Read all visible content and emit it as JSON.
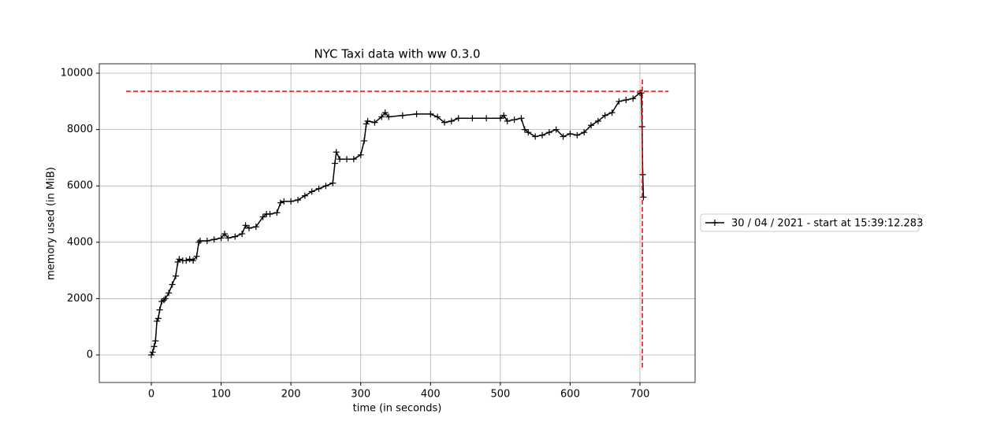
{
  "chart_data": {
    "type": "line",
    "title": "NYC Taxi data with ww 0.3.0",
    "xlabel": "time (in seconds)",
    "ylabel": "memory used (in MiB)",
    "x": [
      0,
      2,
      4,
      6,
      8,
      10,
      12,
      15,
      18,
      20,
      25,
      30,
      35,
      38,
      40,
      45,
      50,
      55,
      60,
      65,
      68,
      70,
      80,
      90,
      100,
      105,
      110,
      120,
      130,
      135,
      140,
      150,
      160,
      165,
      170,
      180,
      185,
      190,
      200,
      210,
      220,
      230,
      240,
      250,
      260,
      263,
      265,
      270,
      280,
      290,
      300,
      305,
      308,
      310,
      320,
      330,
      335,
      340,
      360,
      380,
      400,
      410,
      420,
      430,
      440,
      460,
      480,
      500,
      505,
      510,
      520,
      530,
      535,
      540,
      550,
      560,
      570,
      580,
      590,
      600,
      610,
      620,
      630,
      640,
      650,
      660,
      670,
      680,
      690,
      700,
      702,
      703,
      704,
      705
    ],
    "series": [
      {
        "name": "30 / 04 / 2021 - start at 15:39:12.283",
        "color": "#000000",
        "values": [
          0,
          100,
          300,
          500,
          1200,
          1300,
          1600,
          1900,
          1950,
          2000,
          2200,
          2500,
          2800,
          3300,
          3400,
          3350,
          3350,
          3400,
          3350,
          3500,
          4000,
          4050,
          4050,
          4100,
          4150,
          4300,
          4150,
          4200,
          4300,
          4600,
          4500,
          4550,
          4900,
          5000,
          5000,
          5050,
          5400,
          5450,
          5450,
          5500,
          5650,
          5800,
          5900,
          6000,
          6100,
          6800,
          7200,
          6950,
          6950,
          6950,
          7100,
          7600,
          8200,
          8300,
          8250,
          8450,
          8600,
          8450,
          8500,
          8550,
          8550,
          8450,
          8250,
          8300,
          8400,
          8400,
          8400,
          8400,
          8500,
          8300,
          8350,
          8400,
          8000,
          7900,
          7750,
          7800,
          7900,
          8000,
          7750,
          7850,
          7800,
          7900,
          8150,
          8300,
          8500,
          8600,
          9000,
          9050,
          9100,
          9300,
          9300,
          8100,
          6400,
          5600
        ]
      }
    ],
    "reference_lines": [
      {
        "orientation": "horizontal",
        "value": 9358,
        "from": -36,
        "to": 741,
        "color": "#ff0000"
      },
      {
        "orientation": "vertical",
        "value": 703.4,
        "from": -447,
        "to": 9800,
        "color": "#ff0000"
      }
    ],
    "xlim": [
      -74.5,
      779
    ],
    "ylim": [
      -977,
      10335
    ],
    "xticks": [
      0,
      100,
      200,
      300,
      400,
      500,
      600,
      700
    ],
    "yticks": [
      0,
      2000,
      4000,
      6000,
      8000,
      10000
    ],
    "grid": true,
    "legend": "outside right"
  }
}
